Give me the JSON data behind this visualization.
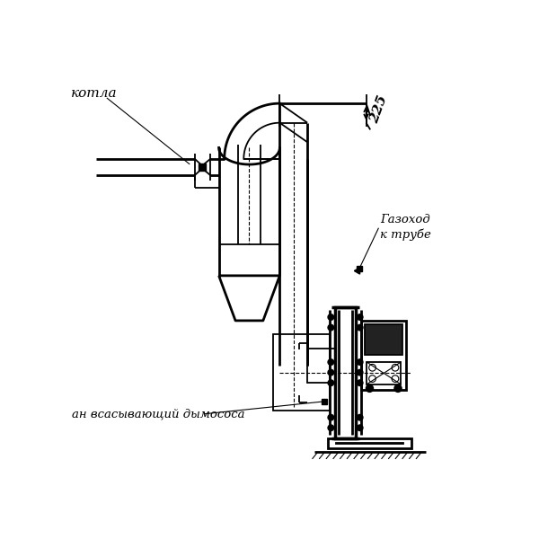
{
  "bg_color": "#ffffff",
  "line_color": "#000000",
  "fig_width": 6.0,
  "fig_height": 6.0,
  "dpi": 100,
  "label_kotla": "котла",
  "label_gazokhod": "Газоход\nк трубе",
  "label_dymosos": "ан всасывающий дымососа",
  "dim_225": "225"
}
